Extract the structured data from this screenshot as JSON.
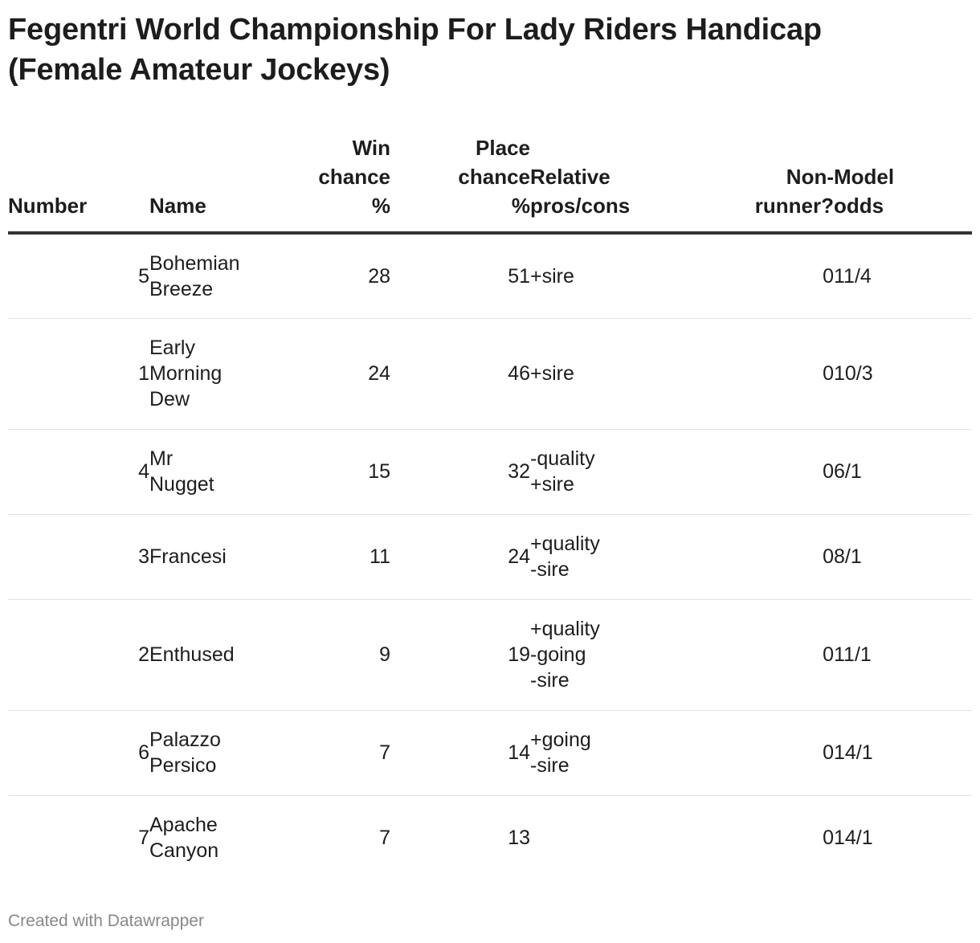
{
  "title_line1": "Fegentri World Championship For Lady Riders Handicap",
  "title_line2": "(Female Amateur Jockeys)",
  "footer": "Created with Datawrapper",
  "chart_data": {
    "type": "table",
    "columns": [
      "Number",
      "Name",
      "Win chance %",
      "Place chance %",
      "Relative pros/cons",
      "Non-runner?",
      "Model odds"
    ],
    "header_lines": {
      "number": "Number",
      "name": "Name",
      "win": "Win\nchance\n%",
      "place": "Place\nchance\n%",
      "pros": "Relative\npros/cons",
      "nonrunner": "Non-\nrunner?",
      "odds": "Model\nodds"
    },
    "rows": [
      {
        "number": "5",
        "name": "Bohemian\nBreeze",
        "win": "28",
        "place": "51",
        "pros": "+sire",
        "nonrunner": "0",
        "odds": "11/4"
      },
      {
        "number": "1",
        "name": "Early\nMorning\nDew",
        "win": "24",
        "place": "46",
        "pros": "+sire",
        "nonrunner": "0",
        "odds": "10/3"
      },
      {
        "number": "4",
        "name": "Mr\nNugget",
        "win": "15",
        "place": "32",
        "pros": "-quality\n+sire",
        "nonrunner": "0",
        "odds": "6/1"
      },
      {
        "number": "3",
        "name": "Francesi",
        "win": "11",
        "place": "24",
        "pros": "+quality\n-sire",
        "nonrunner": "0",
        "odds": "8/1"
      },
      {
        "number": "2",
        "name": "Enthused",
        "win": "9",
        "place": "19",
        "pros": "+quality\n-going\n-sire",
        "nonrunner": "0",
        "odds": "11/1"
      },
      {
        "number": "6",
        "name": "Palazzo\nPersico",
        "win": "7",
        "place": "14",
        "pros": "+going\n-sire",
        "nonrunner": "0",
        "odds": "14/1"
      },
      {
        "number": "7",
        "name": "Apache\nCanyon",
        "win": "7",
        "place": "13",
        "pros": "",
        "nonrunner": "0",
        "odds": "14/1"
      }
    ]
  }
}
